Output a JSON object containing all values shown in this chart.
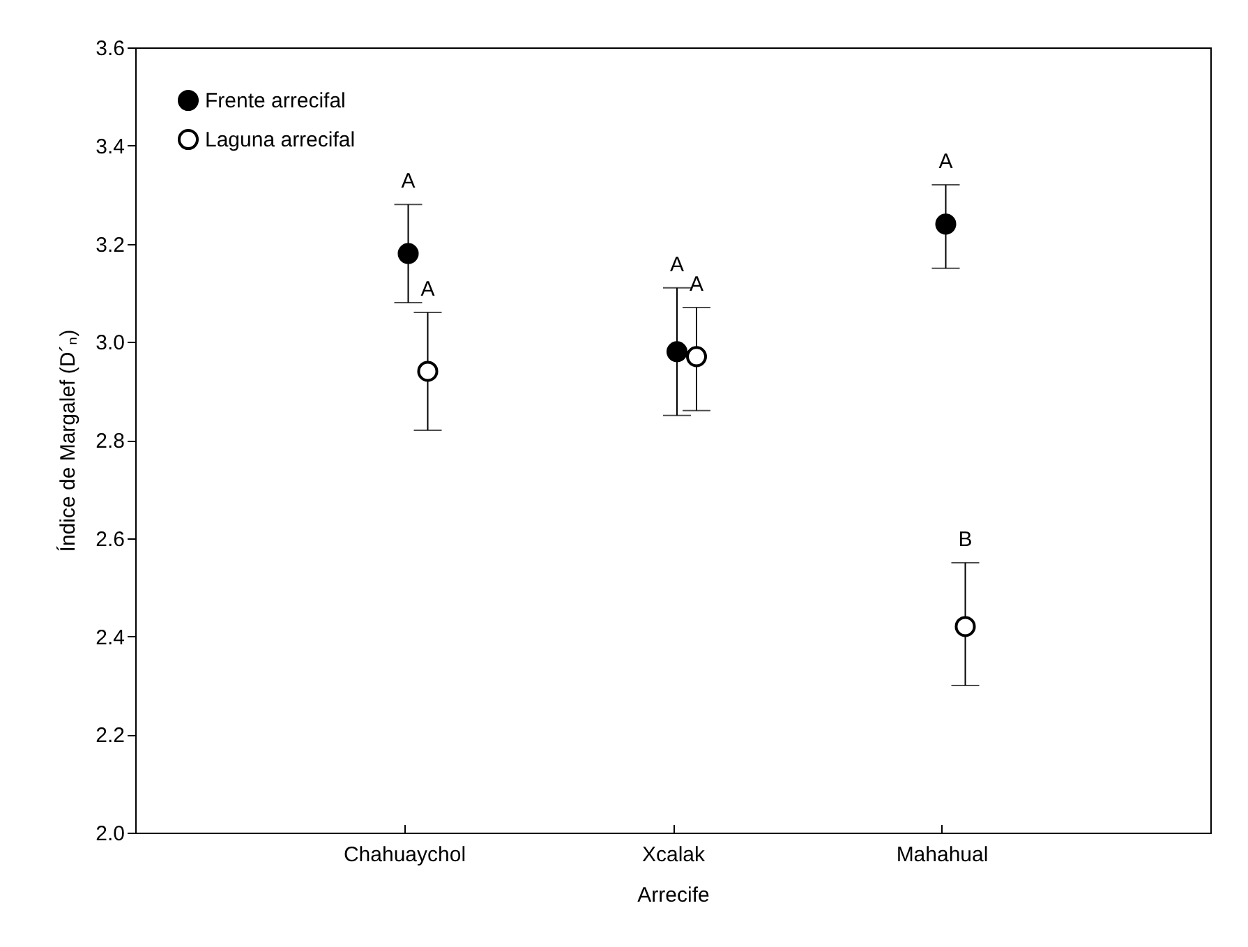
{
  "chart_data": {
    "type": "scatter",
    "xlabel": "Arrecife",
    "ylabel": "Índice de Margalef (D´ₙ)",
    "categories": [
      "Chahuaychol",
      "Xcalak",
      "Mahahual"
    ],
    "series": [
      {
        "name": "Frente arrecifal",
        "color": "#000000",
        "values": [
          3.18,
          2.98,
          3.24
        ],
        "errors": [
          [
            3.08,
            3.28
          ],
          [
            2.85,
            3.11
          ],
          [
            3.15,
            3.32
          ]
        ],
        "value_labels": [
          "A",
          "A",
          "A"
        ]
      },
      {
        "name": "Laguna arrecifal",
        "color": "#ffffff",
        "values": [
          2.94,
          2.97,
          2.42
        ],
        "errors": [
          [
            2.82,
            3.06
          ],
          [
            2.86,
            3.07
          ],
          [
            2.3,
            2.55
          ]
        ],
        "value_labels": [
          "A",
          "A",
          "B"
        ]
      }
    ],
    "ylim": [
      2.0,
      3.6
    ],
    "yticks": [
      {
        "value": 2,
        "label": "2.0"
      },
      2.2,
      2.4,
      2.6,
      2.8,
      {
        "value": 3,
        "label": "3.0"
      },
      3.2,
      3.4,
      3.6
    ],
    "grid": false,
    "legend": "top left",
    "marker": "circle"
  }
}
